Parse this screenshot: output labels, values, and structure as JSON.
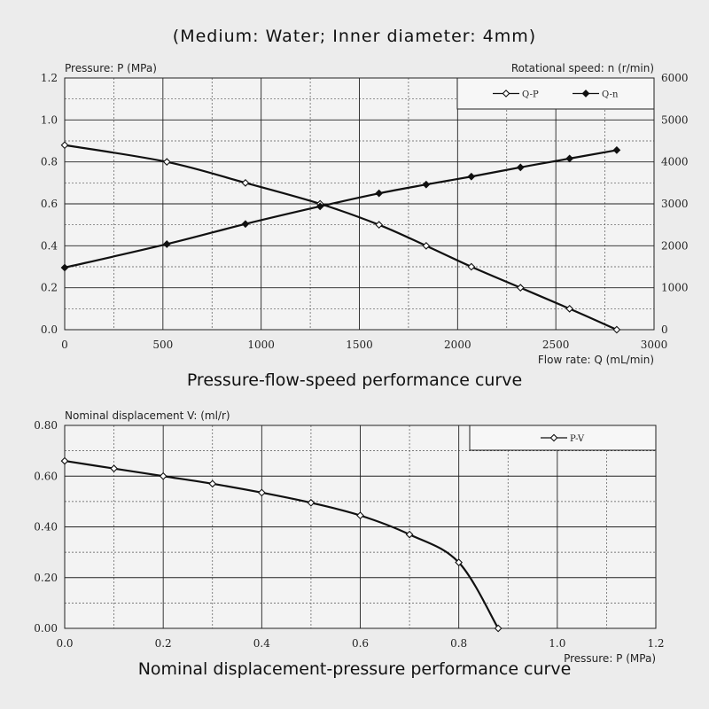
{
  "header": {
    "main_title": "(Medium: Water; Inner diameter: 4mm)"
  },
  "chart_data": [
    {
      "type": "line",
      "title": "Pressure-flow-speed performance curve",
      "xlabel": "Flow rate: Q (mL/min)",
      "ylabel": "Pressure: P (MPa)",
      "y2label": "Rotational speed: n (r/min)",
      "xlim": [
        0,
        3000
      ],
      "ylim": [
        0,
        1.2
      ],
      "y2lim": [
        0,
        6000
      ],
      "xticks": [
        "0",
        "500",
        "1000",
        "1500",
        "2000",
        "2500",
        "3000"
      ],
      "yticks": [
        "0.0",
        "0.2",
        "0.4",
        "0.6",
        "0.8",
        "1.0",
        "1.2"
      ],
      "y2ticks": [
        "0",
        "1000",
        "2000",
        "3000",
        "4000",
        "5000",
        "6000"
      ],
      "grid": true,
      "legend": "top-right",
      "series": [
        {
          "name": "Q-P",
          "axis": "left",
          "marker": "open-diamond",
          "x": [
            0,
            520,
            920,
            1300,
            1600,
            1840,
            2070,
            2320,
            2570,
            2810
          ],
          "y": [
            0.88,
            0.8,
            0.7,
            0.6,
            0.5,
            0.4,
            0.3,
            0.2,
            0.1,
            0.0
          ]
        },
        {
          "name": "Q-n",
          "axis": "right",
          "marker": "filled-diamond",
          "x": [
            0,
            520,
            920,
            1300,
            1600,
            1840,
            2070,
            2320,
            2570,
            2810
          ],
          "y": [
            1480,
            2040,
            2520,
            2940,
            3250,
            3460,
            3650,
            3870,
            4080,
            4280
          ]
        }
      ]
    },
    {
      "type": "line",
      "title": "Nominal displacement-pressure performance curve",
      "xlabel": "Pressure: P (MPa)",
      "ylabel": "Nominal displacement V: (ml/r)",
      "xlim": [
        0,
        1.2
      ],
      "ylim": [
        0,
        0.8
      ],
      "xticks": [
        "0.0",
        "0.2",
        "0.4",
        "0.6",
        "0.8",
        "1.0",
        "1.2"
      ],
      "yticks": [
        "0.00",
        "0.20",
        "0.40",
        "0.60",
        "0.80"
      ],
      "grid": true,
      "legend": "top-right",
      "series": [
        {
          "name": "P-V",
          "marker": "open-diamond",
          "x": [
            0.0,
            0.1,
            0.2,
            0.3,
            0.4,
            0.5,
            0.6,
            0.7,
            0.8,
            0.88
          ],
          "y": [
            0.66,
            0.63,
            0.6,
            0.57,
            0.535,
            0.495,
            0.445,
            0.37,
            0.26,
            0.0
          ]
        }
      ]
    }
  ]
}
